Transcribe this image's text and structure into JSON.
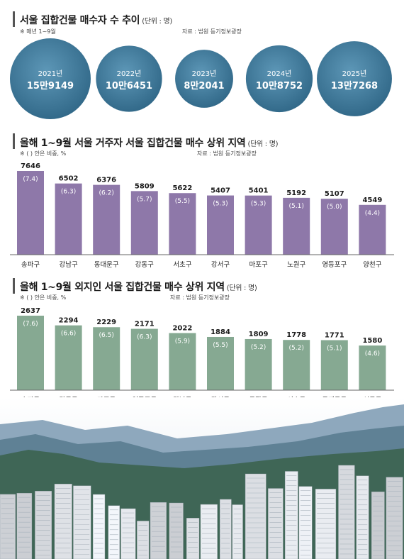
{
  "chart_data": [
    {
      "type": "bubble",
      "title": "서울 집합건물 매수자 수 추이",
      "unit": "(단위 : 명)",
      "note": "※ 매년 1~9월",
      "source": "자료 : 법원 등기정보광장",
      "categories": [
        "2021년",
        "2022년",
        "2023년",
        "2024년",
        "2025년"
      ],
      "values": [
        159149,
        106451,
        82041,
        108752,
        137268
      ],
      "value_labels": [
        "15만9149",
        "10만6451",
        "8만2041",
        "10만8752",
        "13만7268"
      ],
      "colors": {
        "bubble": "#4a84a5"
      }
    },
    {
      "type": "bar",
      "title": "올해 1~9월 서울 거주자 서울 집합건물 매수 상위 지역",
      "unit": "(단위 : 명)",
      "note": "※ ( ) 안은 비중, %",
      "source": "자료 : 법원 등기정보광장",
      "categories": [
        "송파구",
        "강남구",
        "동대문구",
        "강동구",
        "서초구",
        "강서구",
        "마포구",
        "노원구",
        "영등포구",
        "양천구"
      ],
      "values": [
        7646,
        6502,
        6376,
        5809,
        5622,
        5407,
        5401,
        5192,
        5107,
        4549
      ],
      "shares": [
        "(7.4)",
        "(6.3)",
        "(6.2)",
        "(5.7)",
        "(5.5)",
        "(5.3)",
        "(5.3)",
        "(5.1)",
        "(5.0)",
        "(4.4)"
      ],
      "colors": {
        "bar": "#8e78a9"
      }
    },
    {
      "type": "bar",
      "title": "올해 1~9월 외지인 서울 집합건물 매수 상위 지역",
      "unit": "(단위 : 명)",
      "note": "※ ( ) 안은 비중, %",
      "source": "자료 : 법원 등기정보광장",
      "categories": [
        "송파구",
        "강동구",
        "마포구",
        "영등포구",
        "강남구",
        "강서구",
        "동작구",
        "서초구",
        "동대문구",
        "성동구"
      ],
      "values": [
        2637,
        2294,
        2229,
        2171,
        2022,
        1884,
        1809,
        1778,
        1771,
        1580
      ],
      "shares": [
        "(7.6)",
        "(6.6)",
        "(6.5)",
        "(6.3)",
        "(5.9)",
        "(5.5)",
        "(5.2)",
        "(5.2)",
        "(5.1)",
        "(4.6)"
      ],
      "colors": {
        "bar": "#86a992"
      }
    }
  ]
}
